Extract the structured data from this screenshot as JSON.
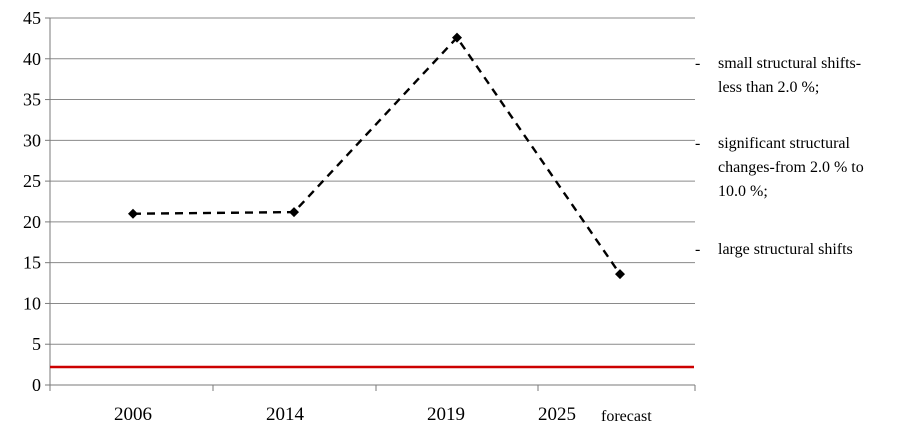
{
  "chart_data": {
    "type": "line",
    "categories": [
      "2006",
      "2014",
      "2019",
      "2025"
    ],
    "forecast_label": "forecast",
    "series": [
      {
        "values": [
          21,
          21.2,
          42.6,
          13.6
        ],
        "line_style": "dashed",
        "color": "#000000",
        "marker": "diamond"
      }
    ],
    "reference_lines": [
      {
        "value": 2.2,
        "color": "#cc0000"
      }
    ],
    "ylim": [
      0,
      45
    ],
    "yticks": [
      0,
      5,
      10,
      15,
      20,
      25,
      30,
      35,
      40,
      45
    ],
    "grid": true,
    "legend_placement": "right",
    "legend": [
      {
        "bullet": "-",
        "lines": [
          "small structural shifts-",
          "less than 2.0  %;"
        ]
      },
      {
        "bullet": "-",
        "lines": [
          "significant structural",
          "changes-from 2.0  % to",
          "10.0  %;"
        ]
      },
      {
        "bullet": "-",
        "lines": [
          "large structural shifts"
        ]
      }
    ]
  }
}
